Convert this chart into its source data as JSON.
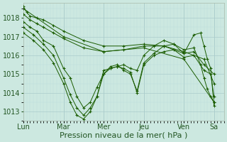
{
  "background_color": "#cce8e0",
  "plot_bg_color": "#cce8e0",
  "grid_color_major": "#aacccc",
  "grid_color_minor": "#bbdddd",
  "line_color": "#1a5c00",
  "marker_color": "#1a5c00",
  "ylim": [
    1012.5,
    1018.8
  ],
  "yticks": [
    1013,
    1014,
    1015,
    1016,
    1017,
    1018
  ],
  "xlabel": "Pression niveau de la mer( hPa )",
  "xlabel_fontsize": 8,
  "tick_fontsize": 7,
  "day_labels": [
    "Lun",
    "Mar",
    "Mer",
    "Jeu",
    "Ven",
    "Sa"
  ],
  "day_positions_norm": [
    0.0,
    0.4,
    0.7,
    0.825,
    0.95,
    1.0
  ],
  "xlim": [
    0,
    120
  ],
  "day_x": [
    0,
    24,
    48,
    72,
    96,
    114
  ],
  "series": [
    [
      [
        0,
        1018.6
      ],
      [
        2,
        1018.3
      ],
      [
        4,
        1018.1
      ],
      [
        8,
        1018.0
      ],
      [
        12,
        1017.9
      ],
      [
        18,
        1017.6
      ],
      [
        24,
        1017.3
      ],
      [
        36,
        1016.8
      ],
      [
        48,
        1016.5
      ],
      [
        60,
        1016.5
      ],
      [
        72,
        1016.6
      ],
      [
        84,
        1016.5
      ],
      [
        96,
        1016.2
      ],
      [
        108,
        1015.8
      ],
      [
        114,
        1014.5
      ]
    ],
    [
      [
        0,
        1018.2
      ],
      [
        4,
        1017.9
      ],
      [
        8,
        1017.7
      ],
      [
        12,
        1017.5
      ],
      [
        18,
        1017.2
      ],
      [
        24,
        1016.9
      ],
      [
        36,
        1016.4
      ],
      [
        48,
        1016.2
      ],
      [
        60,
        1016.3
      ],
      [
        72,
        1016.5
      ],
      [
        84,
        1016.5
      ],
      [
        96,
        1016.1
      ],
      [
        102,
        1016.2
      ],
      [
        108,
        1015.5
      ],
      [
        114,
        1015.0
      ]
    ],
    [
      [
        0,
        1017.8
      ],
      [
        4,
        1017.5
      ],
      [
        8,
        1017.3
      ],
      [
        12,
        1016.8
      ],
      [
        18,
        1016.5
      ],
      [
        24,
        1015.3
      ],
      [
        28,
        1014.8
      ],
      [
        32,
        1013.8
      ],
      [
        36,
        1013.2
      ],
      [
        40,
        1013.5
      ],
      [
        44,
        1014.3
      ],
      [
        48,
        1015.0
      ],
      [
        52,
        1015.3
      ],
      [
        56,
        1015.4
      ],
      [
        60,
        1015.3
      ],
      [
        64,
        1015.1
      ],
      [
        68,
        1014.0
      ],
      [
        72,
        1015.5
      ],
      [
        78,
        1016.0
      ],
      [
        84,
        1016.2
      ],
      [
        90,
        1016.3
      ],
      [
        96,
        1015.9
      ],
      [
        102,
        1016.0
      ],
      [
        108,
        1015.2
      ],
      [
        112,
        1015.0
      ],
      [
        114,
        1013.8
      ]
    ],
    [
      [
        0,
        1017.5
      ],
      [
        6,
        1017.1
      ],
      [
        12,
        1016.6
      ],
      [
        18,
        1016.0
      ],
      [
        24,
        1014.8
      ],
      [
        28,
        1013.9
      ],
      [
        32,
        1013.2
      ],
      [
        36,
        1012.8
      ],
      [
        40,
        1013.2
      ],
      [
        44,
        1013.8
      ],
      [
        48,
        1015.0
      ],
      [
        52,
        1015.4
      ],
      [
        56,
        1015.5
      ],
      [
        60,
        1015.2
      ],
      [
        64,
        1015.0
      ],
      [
        68,
        1014.1
      ],
      [
        72,
        1015.6
      ],
      [
        78,
        1016.1
      ],
      [
        84,
        1016.5
      ],
      [
        90,
        1016.6
      ],
      [
        96,
        1016.1
      ],
      [
        102,
        1017.1
      ],
      [
        106,
        1017.2
      ],
      [
        108,
        1016.5
      ],
      [
        110,
        1015.8
      ],
      [
        112,
        1015.3
      ],
      [
        114,
        1013.3
      ]
    ],
    [
      [
        0,
        1017.2
      ],
      [
        6,
        1016.8
      ],
      [
        12,
        1016.3
      ],
      [
        18,
        1015.6
      ],
      [
        24,
        1014.5
      ],
      [
        28,
        1013.5
      ],
      [
        32,
        1012.8
      ],
      [
        36,
        1012.6
      ],
      [
        40,
        1013.0
      ],
      [
        44,
        1013.8
      ],
      [
        48,
        1015.2
      ],
      [
        52,
        1015.3
      ],
      [
        56,
        1015.4
      ],
      [
        60,
        1015.5
      ],
      [
        64,
        1015.3
      ],
      [
        68,
        1015.2
      ],
      [
        72,
        1016.0
      ],
      [
        78,
        1016.5
      ],
      [
        84,
        1016.8
      ],
      [
        90,
        1016.6
      ],
      [
        96,
        1016.3
      ],
      [
        102,
        1016.4
      ],
      [
        106,
        1015.5
      ],
      [
        108,
        1014.8
      ],
      [
        110,
        1014.2
      ],
      [
        112,
        1013.8
      ],
      [
        114,
        1013.5
      ]
    ],
    [
      [
        0,
        1018.5
      ],
      [
        24,
        1017.0
      ],
      [
        48,
        1016.2
      ],
      [
        72,
        1016.4
      ],
      [
        96,
        1015.8
      ],
      [
        114,
        1013.5
      ]
    ]
  ]
}
